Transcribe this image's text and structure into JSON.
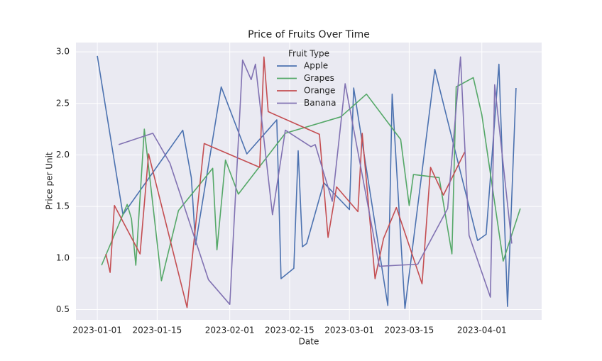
{
  "chart_data": {
    "type": "line",
    "title": "Price of Fruits Over Time",
    "x_label": "Date",
    "y_label": "Price per Unit",
    "xlim": [
      "2022-12-27",
      "2023-04-15"
    ],
    "ylim": [
      0.4,
      3.09
    ],
    "xticks": [
      "2023-01-01",
      "2023-01-15",
      "2023-02-01",
      "2023-02-15",
      "2023-03-01",
      "2023-03-15",
      "2023-04-01"
    ],
    "yticks": [
      0.5,
      {
        "value": 1,
        "label": "1.0"
      },
      1.5,
      {
        "value": 2,
        "label": "2.0"
      },
      2.5,
      {
        "value": 3,
        "label": "3.0"
      }
    ],
    "grid": true,
    "legend_title": "Fruit Type",
    "legend_loc": "upper center",
    "series": [
      {
        "name": "Apple",
        "color": "#4c72b0",
        "x": [
          "2023-01-01",
          "2023-01-07",
          "2023-01-21",
          "2023-01-23",
          "2023-01-24",
          "2023-01-30",
          "2023-02-05",
          "2023-02-12",
          "2023-02-13",
          "2023-02-16",
          "2023-02-17",
          "2023-02-18",
          "2023-02-19",
          "2023-02-23",
          "2023-03-01",
          "2023-03-02",
          "2023-03-10",
          "2023-03-11",
          "2023-03-14",
          "2023-03-21",
          "2023-03-31",
          "2023-04-02",
          "2023-04-05",
          "2023-04-07",
          "2023-04-09"
        ],
        "values": [
          2.96,
          1.42,
          2.24,
          1.78,
          1.13,
          2.66,
          2.01,
          2.34,
          0.8,
          0.9,
          2.04,
          1.11,
          1.14,
          1.73,
          1.47,
          2.65,
          0.54,
          2.59,
          0.51,
          2.83,
          1.17,
          1.23,
          2.88,
          0.53,
          2.65
        ]
      },
      {
        "name": "Grapes",
        "color": "#55a868",
        "x": [
          "2023-01-02",
          "2023-01-08",
          "2023-01-09",
          "2023-01-10",
          "2023-01-12",
          "2023-01-16",
          "2023-01-20",
          "2023-01-28",
          "2023-01-29",
          "2023-01-31",
          "2023-02-03",
          "2023-02-14",
          "2023-02-27",
          "2023-03-05",
          "2023-03-13",
          "2023-03-15",
          "2023-03-16",
          "2023-03-22",
          "2023-03-25",
          "2023-03-26",
          "2023-03-30",
          "2023-04-01",
          "2023-04-06",
          "2023-04-10"
        ],
        "values": [
          0.93,
          1.52,
          1.38,
          0.93,
          2.25,
          0.78,
          1.46,
          1.87,
          1.08,
          1.95,
          1.62,
          2.21,
          2.37,
          2.59,
          2.15,
          1.51,
          1.81,
          1.78,
          1.04,
          2.66,
          2.75,
          2.39,
          0.97,
          1.48
        ]
      },
      {
        "name": "Orange",
        "color": "#c44e52",
        "x": [
          "2023-01-03",
          "2023-01-04",
          "2023-01-05",
          "2023-01-11",
          "2023-01-13",
          "2023-01-22",
          "2023-01-26",
          "2023-02-08",
          "2023-02-09",
          "2023-02-10",
          "2023-02-22",
          "2023-02-24",
          "2023-02-26",
          "2023-03-03",
          "2023-03-04",
          "2023-03-07",
          "2023-03-09",
          "2023-03-12",
          "2023-03-18",
          "2023-03-20",
          "2023-03-23",
          "2023-03-28"
        ],
        "values": [
          1.04,
          0.86,
          1.51,
          1.04,
          2.01,
          0.52,
          2.11,
          1.88,
          2.95,
          2.42,
          2.2,
          1.2,
          1.69,
          1.45,
          2.21,
          0.8,
          1.19,
          1.49,
          0.75,
          1.88,
          1.61,
          2.03
        ]
      },
      {
        "name": "Banana",
        "color": "#8172b2",
        "x": [
          "2023-01-06",
          "2023-01-14",
          "2023-01-18",
          "2023-01-27",
          "2023-02-01",
          "2023-02-04",
          "2023-02-06",
          "2023-02-07",
          "2023-02-11",
          "2023-02-14",
          "2023-02-20",
          "2023-02-21",
          "2023-02-25",
          "2023-02-28",
          "2023-03-08",
          "2023-03-17",
          "2023-03-24",
          "2023-03-27",
          "2023-03-29",
          "2023-04-03",
          "2023-04-04",
          "2023-04-08"
        ],
        "values": [
          2.1,
          2.21,
          1.92,
          0.79,
          0.55,
          2.92,
          2.73,
          2.88,
          1.42,
          2.24,
          2.08,
          2.1,
          1.55,
          2.69,
          0.92,
          0.94,
          1.48,
          2.95,
          1.22,
          0.62,
          2.68,
          1.14
        ]
      }
    ]
  }
}
